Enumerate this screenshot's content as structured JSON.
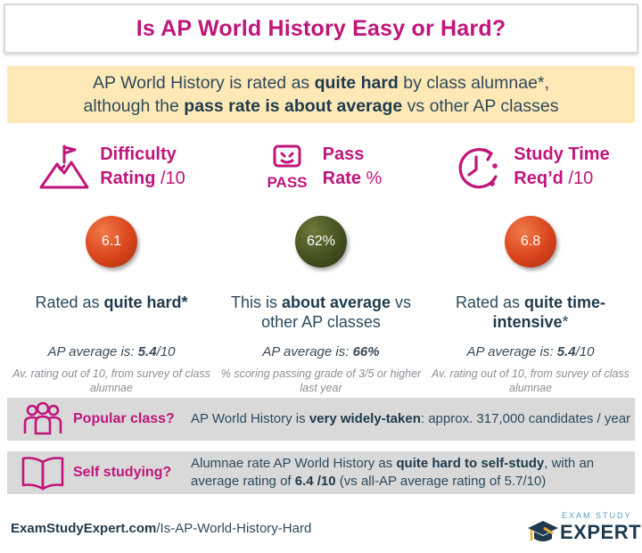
{
  "title": "Is AP World History Easy or Hard?",
  "subtitle": {
    "line1_pre": "AP World History is rated as ",
    "line1_bold": "quite hard",
    "line1_post": " by class alumnae*,",
    "line2_pre": "although the ",
    "line2_bold": "pass rate is about average",
    "line2_post": " vs other AP classes"
  },
  "metrics": [
    {
      "title_line1": "Difficulty",
      "title_line2": "Rating",
      "unit": " /10",
      "value": "6.1",
      "color": "red",
      "verdict_pre": "Rated as ",
      "verdict_bold": "quite hard*",
      "verdict_post": "",
      "avg_label": "AP average is: ",
      "avg_value": "5.4",
      "avg_unit": "/10",
      "note": "Av. rating out of 10, from survey of class alumnae"
    },
    {
      "title_line1": "Pass",
      "title_line2": "Rate",
      "unit": " %",
      "value": "62%",
      "color": "green",
      "verdict_pre": "This is ",
      "verdict_bold": "about average",
      "verdict_post": " vs other AP classes",
      "avg_label": "AP average is: ",
      "avg_value": "66%",
      "avg_unit": "",
      "note": "% scoring passing grade of 3/5 or higher last year"
    },
    {
      "title_line1": "Study Time",
      "title_line2": "Req’d",
      "unit": " /10",
      "value": "6.8",
      "color": "red",
      "verdict_pre": "Rated as ",
      "verdict_bold": "quite time-intensive",
      "verdict_post": "*",
      "avg_label": "AP average is: ",
      "avg_value": "5.4",
      "avg_unit": "/10",
      "note": "Av. rating out of 10, from survey of class alumnae"
    }
  ],
  "pass_icon_text": "PASS",
  "popular": {
    "label": "Popular class?",
    "text_pre": "AP World History is ",
    "text_bold": "very widely-taken",
    "text_post": ": approx. 317,000 candidates / year"
  },
  "self_study": {
    "label": "Self studying?",
    "text_pre": "Alumnae rate AP World History as ",
    "text_bold": "quite hard to self-study",
    "text_mid": ", with an average rating of ",
    "text_bold2": "6.4 /10",
    "text_post": " (vs all-AP average rating of 5.7/10)"
  },
  "footer": {
    "url_bold": "ExamStudyExpert.com",
    "url_rest": "/Is-AP-World-History-Hard",
    "logo_small": "EXAM STUDY",
    "logo_big": "EXPERT"
  },
  "colors": {
    "accent": "#c0157a",
    "band": "#fde8b6",
    "row": "#d9d9d9",
    "red_ball": "#d9441c",
    "green_ball": "#44501f"
  }
}
